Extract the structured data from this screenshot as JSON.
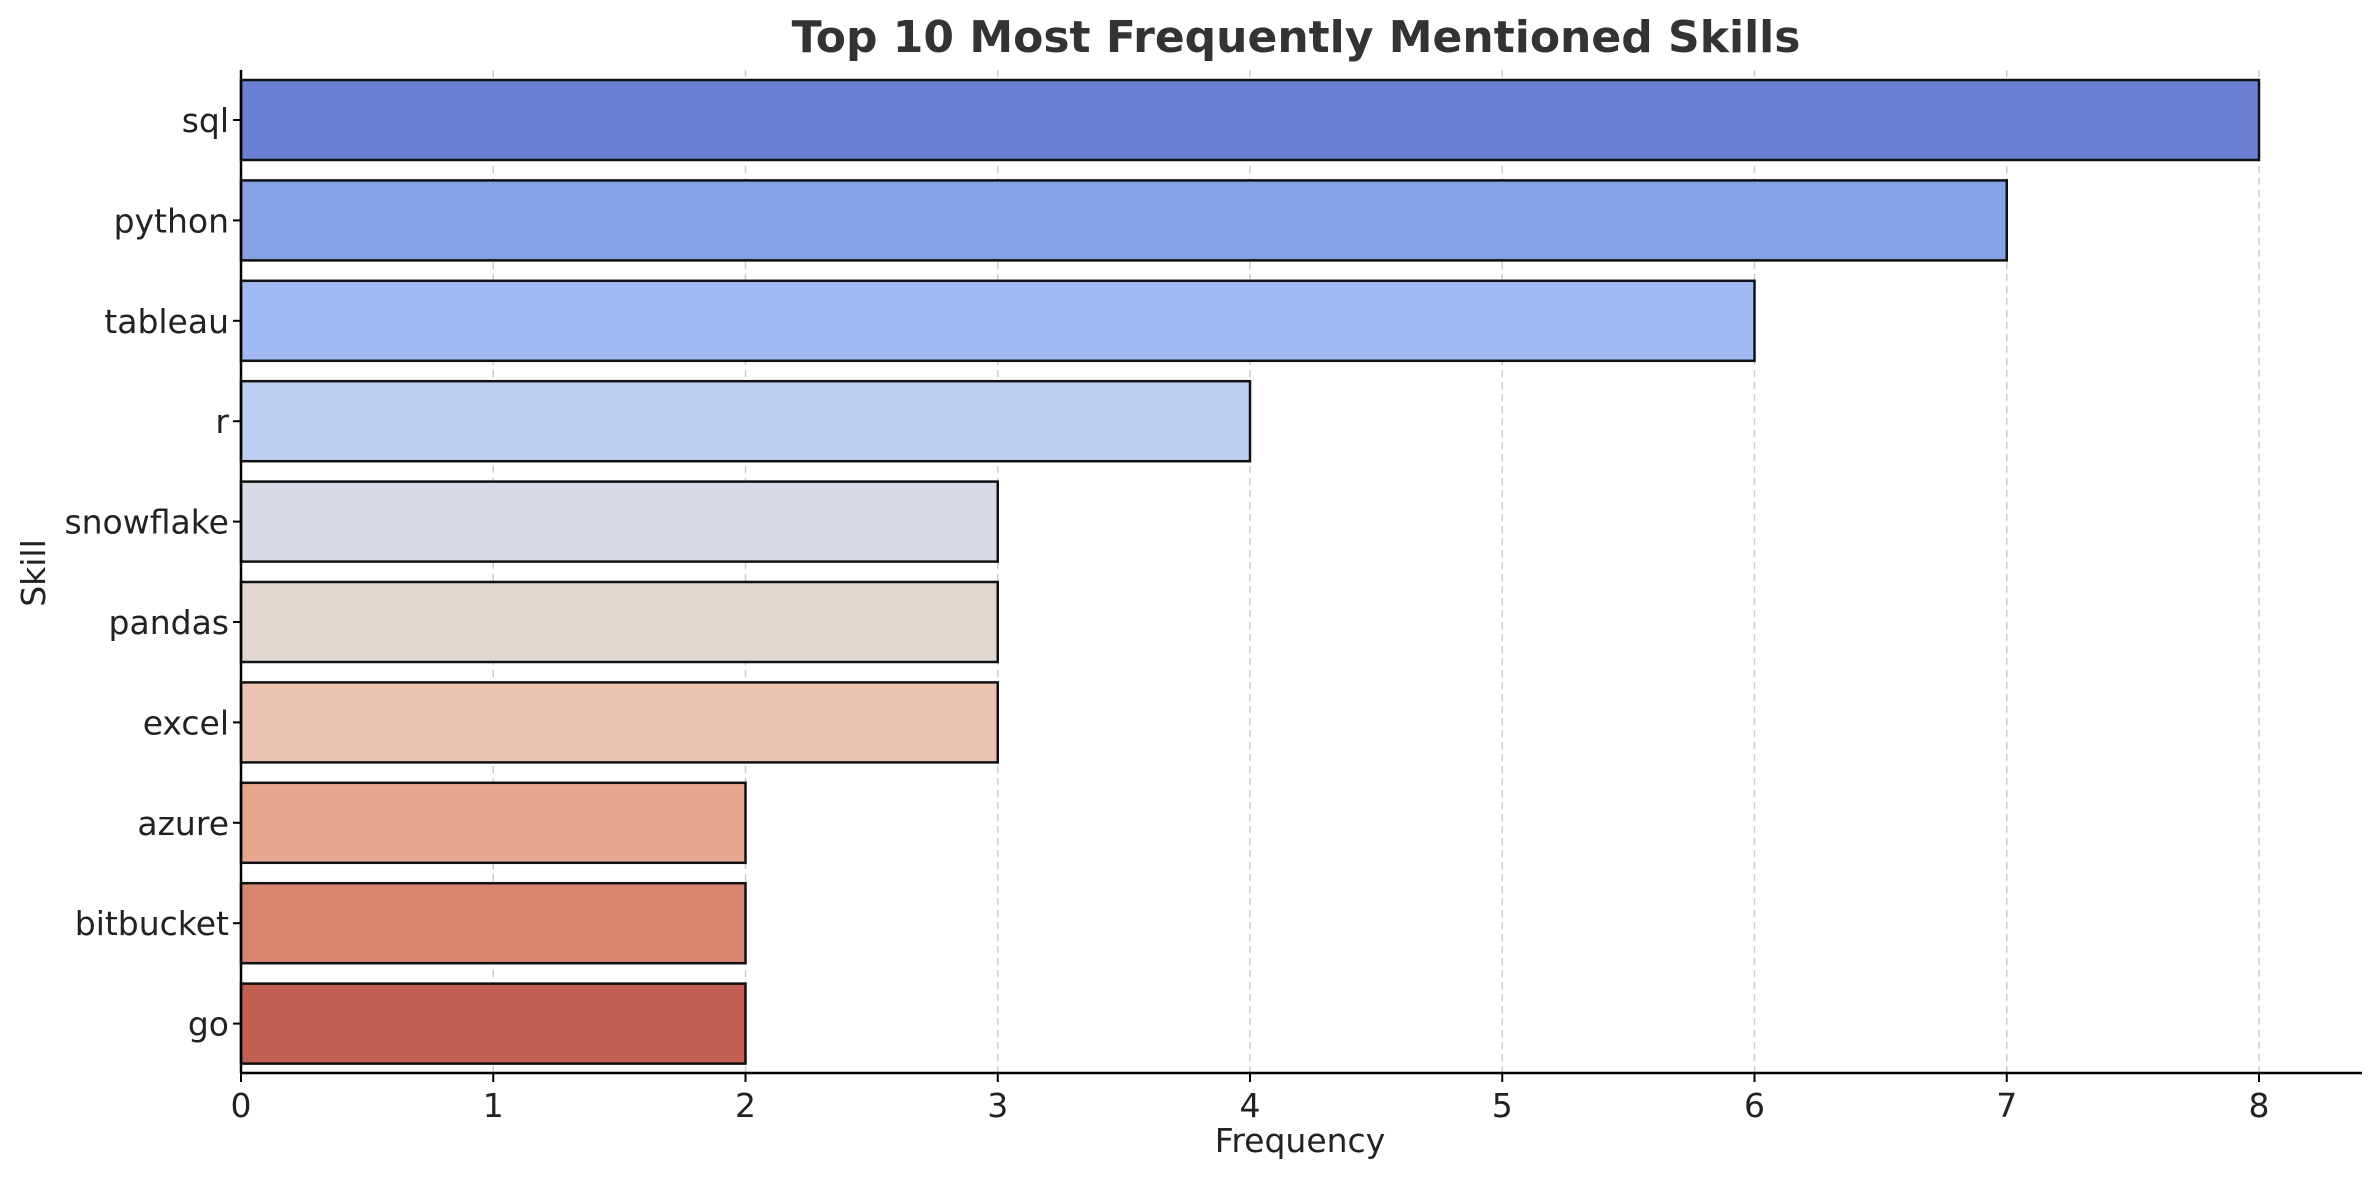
{
  "chart_data": {
    "type": "bar",
    "orientation": "horizontal",
    "title": "Top 10 Most Frequently Mentioned Skills",
    "xlabel": "Frequency",
    "ylabel": "Skill",
    "categories": [
      "sql",
      "python",
      "tableau",
      "r",
      "snowflake",
      "pandas",
      "excel",
      "azure",
      "bitbucket",
      "go"
    ],
    "values": [
      8,
      7,
      6,
      4,
      3,
      3,
      3,
      2,
      2,
      2
    ],
    "colors": [
      "#6a80d3",
      "#86a0e5",
      "#a2bbf3",
      "#bdcff1",
      "#d6dbe6",
      "#e3d8d1",
      "#eac4b0",
      "#e5a78e",
      "#d88672",
      "#c35f53"
    ],
    "xlim": [
      0,
      8.4
    ],
    "xticks": [
      0,
      1,
      2,
      3,
      4,
      5,
      6,
      7,
      8
    ],
    "grid": "x-dashed",
    "legend": "none"
  }
}
